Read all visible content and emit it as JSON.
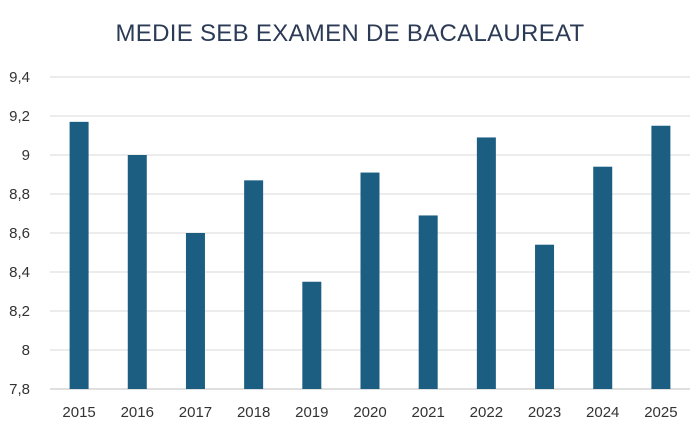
{
  "chart_data": {
    "type": "bar",
    "title": "MEDIE SEB EXAMEN DE BACALAUREAT",
    "xlabel": "",
    "ylabel": "",
    "categories": [
      "2015",
      "2016",
      "2017",
      "2018",
      "2019",
      "2020",
      "2021",
      "2022",
      "2023",
      "2024",
      "2025"
    ],
    "series": [
      {
        "values": [
          9.17,
          9.0,
          8.6,
          8.87,
          8.35,
          8.91,
          8.69,
          9.09,
          8.54,
          8.94,
          9.15
        ]
      }
    ],
    "ylim": [
      7.8,
      9.4
    ],
    "yticks": [
      7.8,
      8.0,
      8.2,
      8.4,
      8.6,
      8.8,
      9.0,
      9.2,
      9.4
    ],
    "ytick_labels": [
      "7,8",
      "8",
      "8,2",
      "8,4",
      "8,6",
      "8,8",
      "9",
      "9,2",
      "9,4"
    ],
    "grid": true,
    "legend": "none",
    "colors": {
      "bar": "#1b5e82",
      "grid": "#d9d9d9",
      "axis": "#bfbfbf"
    }
  }
}
